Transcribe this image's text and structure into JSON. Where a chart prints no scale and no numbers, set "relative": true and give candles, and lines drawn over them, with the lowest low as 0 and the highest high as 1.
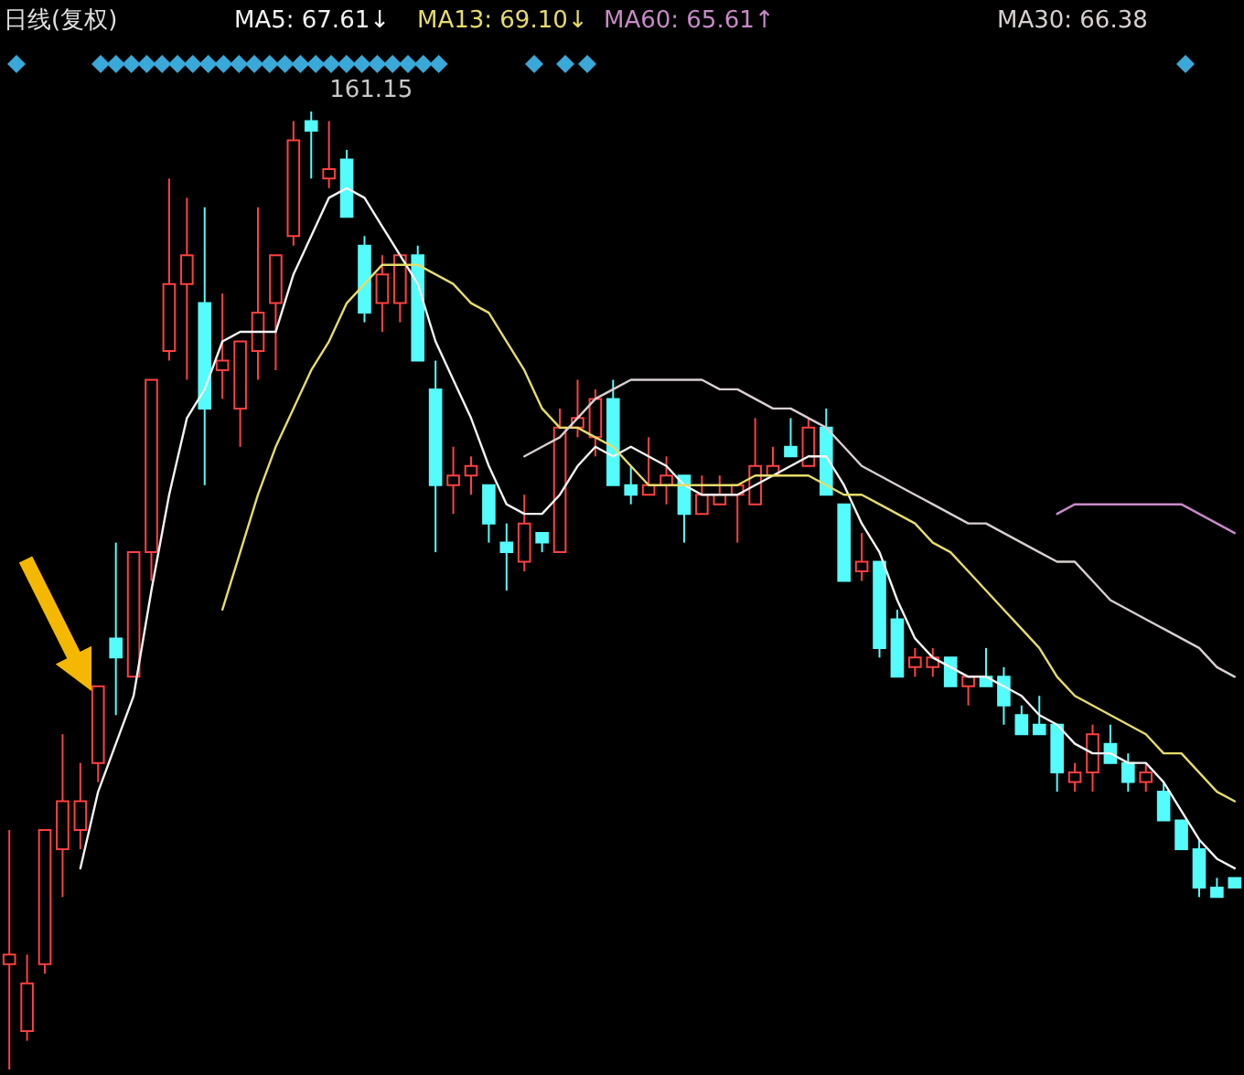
{
  "chart_data": {
    "type": "candlestick",
    "title": "日线(复权)",
    "relative": true,
    "tick_labels": false,
    "categories": [
      null,
      null,
      null,
      null,
      null,
      null,
      null,
      null,
      null,
      null,
      null,
      null,
      null,
      null,
      null,
      null,
      null,
      null,
      null,
      null,
      null,
      null,
      null,
      null,
      null,
      null,
      null,
      null,
      null,
      null,
      null,
      null,
      null,
      null,
      null,
      null,
      null,
      null,
      null,
      null,
      null,
      null,
      null,
      null,
      null,
      null,
      null,
      null,
      null,
      null,
      null,
      null,
      null,
      null,
      null,
      null,
      null,
      null,
      null,
      null,
      null,
      null,
      null,
      null,
      null,
      null,
      null,
      null,
      null,
      null
    ],
    "ohlc": [
      [
        0.11,
        0.25,
        0,
        0.12
      ],
      [
        0.04,
        0.12,
        0.03,
        0.09
      ],
      [
        0.11,
        0.25,
        0.1,
        0.25
      ],
      [
        0.23,
        0.35,
        0.18,
        0.28
      ],
      [
        0.25,
        0.32,
        0.23,
        0.28
      ],
      [
        0.32,
        0.4,
        0.3,
        0.4
      ],
      [
        0.45,
        0.55,
        0.37,
        0.43
      ],
      [
        0.41,
        0.54,
        0.41,
        0.54
      ],
      [
        0.54,
        0.72,
        0.51,
        0.72
      ],
      [
        0.75,
        0.93,
        0.74,
        0.82
      ],
      [
        0.82,
        0.91,
        0.72,
        0.85
      ],
      [
        0.8,
        0.9,
        0.61,
        0.69
      ],
      [
        0.73,
        0.81,
        0.7,
        0.74
      ],
      [
        0.69,
        0.76,
        0.65,
        0.76
      ],
      [
        0.75,
        0.9,
        0.72,
        0.79
      ],
      [
        0.8,
        0.85,
        0.73,
        0.85
      ],
      [
        0.87,
        0.99,
        0.86,
        0.97
      ],
      [
        0.99,
        1,
        0.93,
        0.98
      ],
      [
        0.93,
        0.99,
        0.92,
        0.94
      ],
      [
        0.95,
        0.96,
        0.89,
        0.89
      ],
      [
        0.86,
        0.87,
        0.78,
        0.79
      ],
      [
        0.8,
        0.85,
        0.77,
        0.83
      ],
      [
        0.8,
        0.85,
        0.78,
        0.85
      ],
      [
        0.85,
        0.86,
        0.74,
        0.74
      ],
      [
        0.71,
        0.74,
        0.54,
        0.61
      ],
      [
        0.61,
        0.65,
        0.58,
        0.62
      ],
      [
        0.62,
        0.64,
        0.6,
        0.63
      ],
      [
        0.61,
        0.61,
        0.55,
        0.57
      ],
      [
        0.55,
        0.57,
        0.5,
        0.54
      ],
      [
        0.53,
        0.6,
        0.52,
        0.57
      ],
      [
        0.56,
        0.56,
        0.54,
        0.55
      ],
      [
        0.54,
        0.69,
        0.54,
        0.67
      ],
      [
        0.67,
        0.72,
        0.66,
        0.68
      ],
      [
        0.66,
        0.71,
        0.64,
        0.7
      ],
      [
        0.7,
        0.72,
        0.61,
        0.61
      ],
      [
        0.61,
        0.63,
        0.59,
        0.6
      ],
      [
        0.6,
        0.66,
        0.6,
        0.61
      ],
      [
        0.61,
        0.64,
        0.59,
        0.62
      ],
      [
        0.62,
        0.62,
        0.55,
        0.58
      ],
      [
        0.58,
        0.62,
        0.58,
        0.6
      ],
      [
        0.59,
        0.62,
        0.59,
        0.6
      ],
      [
        0.6,
        0.61,
        0.55,
        0.61
      ],
      [
        0.59,
        0.68,
        0.59,
        0.63
      ],
      [
        0.62,
        0.65,
        0.62,
        0.63
      ],
      [
        0.65,
        0.68,
        0.64,
        0.64
      ],
      [
        0.63,
        0.68,
        0.63,
        0.67
      ],
      [
        0.67,
        0.69,
        0.6,
        0.6
      ],
      [
        0.59,
        0.59,
        0.51,
        0.51
      ],
      [
        0.52,
        0.56,
        0.51,
        0.53
      ],
      [
        0.53,
        0.53,
        0.43,
        0.44
      ],
      [
        0.47,
        0.48,
        0.41,
        0.41
      ],
      [
        0.42,
        0.44,
        0.41,
        0.43
      ],
      [
        0.42,
        0.44,
        0.41,
        0.43
      ],
      [
        0.43,
        0.43,
        0.4,
        0.4
      ],
      [
        0.4,
        0.41,
        0.38,
        0.41
      ],
      [
        0.41,
        0.44,
        0.4,
        0.4
      ],
      [
        0.41,
        0.42,
        0.36,
        0.38
      ],
      [
        0.37,
        0.38,
        0.35,
        0.35
      ],
      [
        0.36,
        0.39,
        0.35,
        0.35
      ],
      [
        0.36,
        0.36,
        0.29,
        0.31
      ],
      [
        0.3,
        0.32,
        0.29,
        0.31
      ],
      [
        0.31,
        0.36,
        0.29,
        0.35
      ],
      [
        0.34,
        0.36,
        0.32,
        0.32
      ],
      [
        0.32,
        0.33,
        0.29,
        0.3
      ],
      [
        0.3,
        0.32,
        0.29,
        0.31
      ],
      [
        0.29,
        0.3,
        0.26,
        0.26
      ],
      [
        0.26,
        0.26,
        0.23,
        0.23
      ],
      [
        0.23,
        0.24,
        0.18,
        0.19
      ],
      [
        0.19,
        0.2,
        0.18,
        0.18
      ],
      [
        0.2,
        0.2,
        0.19,
        0.19
      ]
    ],
    "colors": [
      "#ff4040",
      "#ff4040",
      "#ff4040",
      "#ff4040",
      "#ff4040",
      "#ff4040",
      "#54fcfc",
      "#ff4040",
      "#ff4040",
      "#ff4040",
      "#ff4040",
      "#54fcfc",
      "#ff4040",
      "#ff4040",
      "#ff4040",
      "#ff4040",
      "#ff4040",
      "#54fcfc",
      "#ff4040",
      "#54fcfc",
      "#54fcfc",
      "#ff4040",
      "#ff4040",
      "#54fcfc",
      "#54fcfc",
      "#ff4040",
      "#ff4040",
      "#54fcfc",
      "#54fcfc",
      "#ff4040",
      "#54fcfc",
      "#ff4040",
      "#ff4040",
      "#ff4040",
      "#54fcfc",
      "#54fcfc",
      "#ff4040",
      "#ff4040",
      "#54fcfc",
      "#ff4040",
      "#ff4040",
      "#ff4040",
      "#ff4040",
      "#ff4040",
      "#54fcfc",
      "#ff4040",
      "#54fcfc",
      "#54fcfc",
      "#ff4040",
      "#54fcfc",
      "#54fcfc",
      "#ff4040",
      "#ff4040",
      "#54fcfc",
      "#ff4040",
      "#54fcfc",
      "#54fcfc",
      "#54fcfc",
      "#54fcfc",
      "#54fcfc",
      "#ff4040",
      "#ff4040",
      "#54fcfc",
      "#54fcfc",
      "#ff4040",
      "#54fcfc",
      "#54fcfc",
      "#54fcfc",
      "#54fcfc",
      "#54fcfc"
    ],
    "series": [
      {
        "name": "MA5: 67.61↓",
        "type": "line",
        "color": "#f4f4f4",
        "values": [
          null,
          null,
          null,
          null,
          0.21,
          0.29,
          0.34,
          0.39,
          0.5,
          0.6,
          0.68,
          0.71,
          0.76,
          0.77,
          0.77,
          0.77,
          0.83,
          0.87,
          0.91,
          0.92,
          0.91,
          0.88,
          0.85,
          0.82,
          0.76,
          0.72,
          0.68,
          0.63,
          0.59,
          0.58,
          0.58,
          0.6,
          0.63,
          0.65,
          0.64,
          0.65,
          0.64,
          0.63,
          0.61,
          0.6,
          0.6,
          0.6,
          0.61,
          0.62,
          0.63,
          0.64,
          0.64,
          0.61,
          0.57,
          0.54,
          0.49,
          0.45,
          0.43,
          0.42,
          0.41,
          0.41,
          0.4,
          0.39,
          0.37,
          0.36,
          0.34,
          0.33,
          0.33,
          0.32,
          0.32,
          0.3,
          0.27,
          0.24,
          0.22,
          0.21
        ]
      },
      {
        "name": "MA13: 69.10↓",
        "type": "line",
        "color": "#e6dc6a",
        "values": [
          null,
          null,
          null,
          null,
          null,
          null,
          null,
          null,
          null,
          null,
          null,
          null,
          0.48,
          0.54,
          0.6,
          0.65,
          0.69,
          0.73,
          0.76,
          0.8,
          0.82,
          0.84,
          0.84,
          0.84,
          0.83,
          0.82,
          0.8,
          0.79,
          0.76,
          0.73,
          0.69,
          0.67,
          0.67,
          0.66,
          0.65,
          0.63,
          0.61,
          0.61,
          0.61,
          0.61,
          0.61,
          0.61,
          0.62,
          0.62,
          0.62,
          0.62,
          0.61,
          0.6,
          0.6,
          0.59,
          0.58,
          0.57,
          0.55,
          0.54,
          0.52,
          0.5,
          0.48,
          0.46,
          0.44,
          0.41,
          0.39,
          0.38,
          0.37,
          0.36,
          0.35,
          0.33,
          0.33,
          0.31,
          0.29,
          0.28
        ]
      },
      {
        "name": "MA60: 65.61↑",
        "type": "line",
        "color": "#c88ac8",
        "values": [
          null,
          null,
          null,
          null,
          null,
          null,
          null,
          null,
          null,
          null,
          null,
          null,
          null,
          null,
          null,
          null,
          null,
          null,
          null,
          null,
          null,
          null,
          null,
          null,
          null,
          null,
          null,
          null,
          null,
          null,
          null,
          null,
          null,
          null,
          null,
          null,
          null,
          null,
          null,
          null,
          null,
          null,
          null,
          null,
          null,
          null,
          null,
          null,
          null,
          null,
          null,
          null,
          null,
          null,
          null,
          null,
          null,
          null,
          null,
          0.58,
          0.59,
          0.59,
          0.59,
          0.59,
          0.59,
          0.59,
          0.59,
          0.58,
          0.57,
          0.56
        ]
      },
      {
        "name": "MA30: 66.38",
        "type": "line",
        "color": "#d8cfcf",
        "values": [
          null,
          null,
          null,
          null,
          null,
          null,
          null,
          null,
          null,
          null,
          null,
          null,
          null,
          null,
          null,
          null,
          null,
          null,
          null,
          null,
          null,
          null,
          null,
          null,
          null,
          null,
          null,
          null,
          null,
          0.64,
          0.65,
          0.66,
          0.68,
          0.7,
          0.71,
          0.72,
          0.72,
          0.72,
          0.72,
          0.72,
          0.71,
          0.71,
          0.7,
          0.69,
          0.69,
          0.68,
          0.67,
          0.65,
          0.63,
          0.62,
          0.61,
          0.6,
          0.59,
          0.58,
          0.57,
          0.57,
          0.56,
          0.55,
          0.54,
          0.53,
          0.53,
          0.51,
          0.49,
          0.48,
          0.47,
          0.46,
          0.45,
          0.44,
          0.42,
          0.41
        ]
      }
    ],
    "annotations": [
      "161.15"
    ]
  }
}
